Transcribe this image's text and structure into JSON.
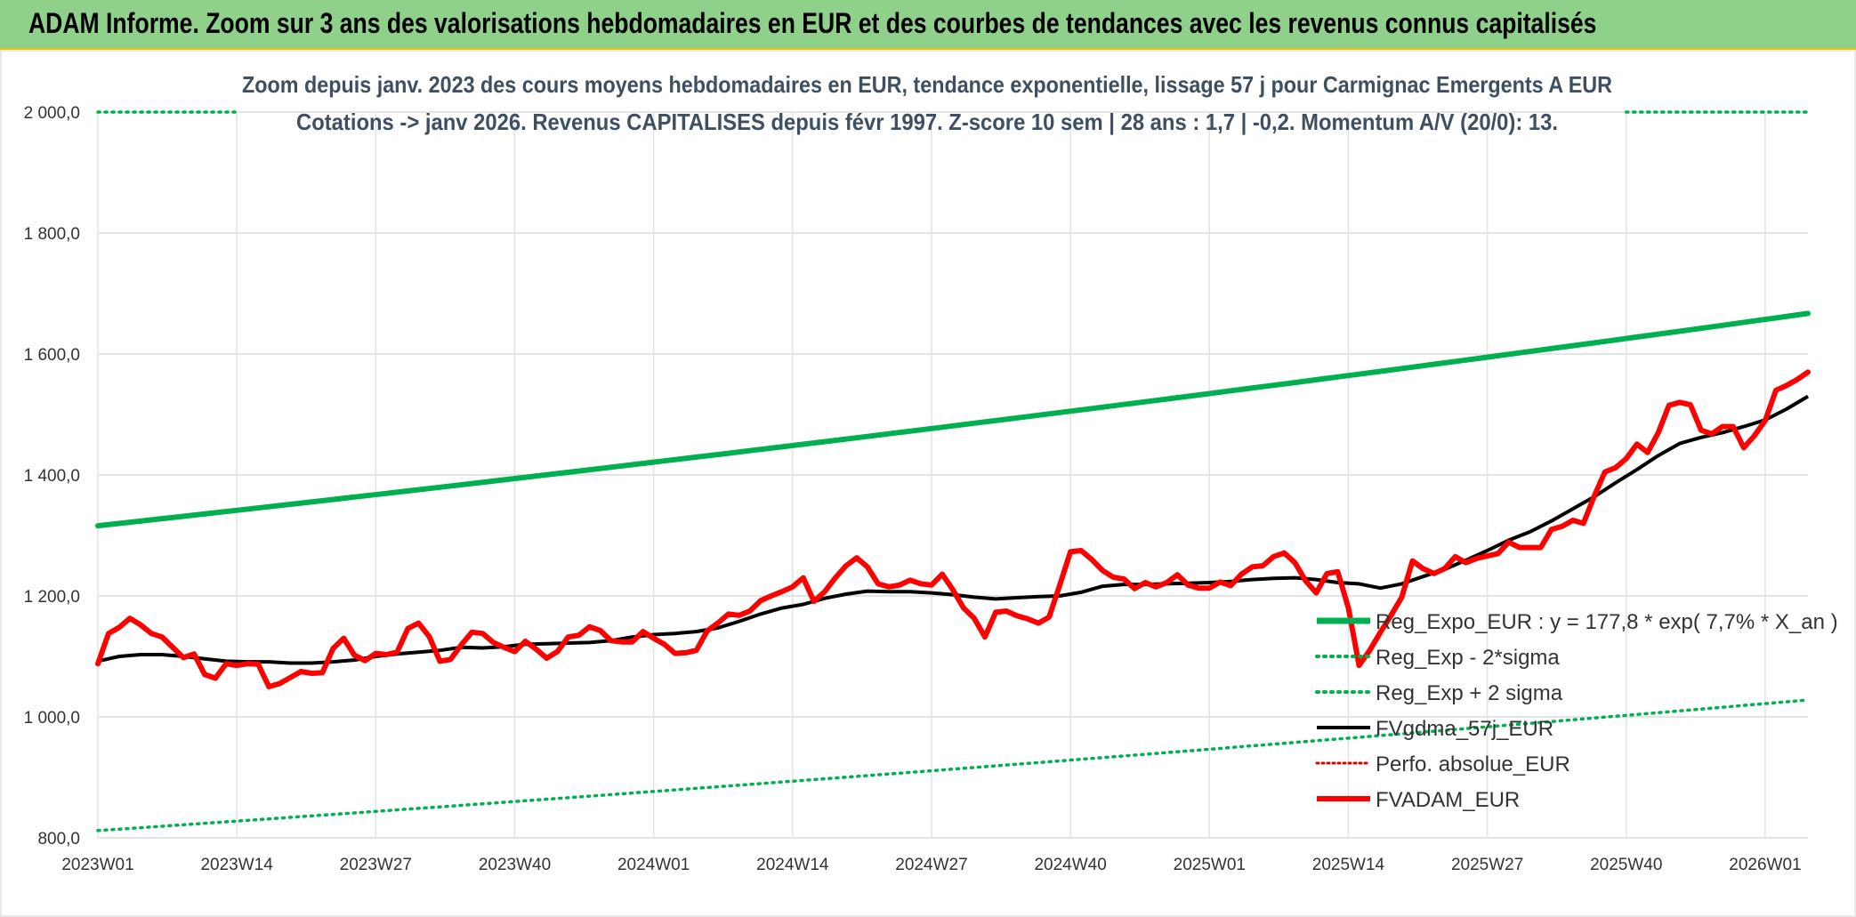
{
  "header": {
    "title": "ADAM Informe. Zoom sur 3 ans des valorisations hebdomadaires en EUR et des courbes de tendances avec les revenus connus capitalisés"
  },
  "chart_data": {
    "type": "line",
    "title_line1": "Zoom depuis janv. 2023 des cours moyens hebdomadaires en EUR, tendance exponentielle, lissage 57 j pour Carmignac Emergents A EUR",
    "title_line2": "Cotations -> janv 2026. Revenus CAPITALISES depuis févr 1997. Z-score 10 sem | 28 ans : 1,7 | -0,2. Momentum A/V (20/0): 13.",
    "ylim": [
      800,
      2000
    ],
    "yticks": [
      800,
      1000,
      1200,
      1400,
      1600,
      1800,
      2000
    ],
    "ytick_labels": [
      "800,0",
      "1 000,0",
      "1 200,0",
      "1 400,0",
      "1 600,0",
      "1 800,0",
      "2 000,0"
    ],
    "xlim": [
      0,
      160
    ],
    "xticks": [
      0,
      13,
      26,
      39,
      52,
      65,
      78,
      91,
      104,
      117,
      130,
      143,
      156
    ],
    "xtick_labels": [
      "2023W01",
      "2023W14",
      "2023W27",
      "2023W40",
      "2024W01",
      "2024W14",
      "2024W27",
      "2024W40",
      "2025W01",
      "2025W14",
      "2025W27",
      "2025W40",
      "2026W01"
    ],
    "grid": true,
    "legend_position": "bottom-right",
    "colors": {
      "reg": "#00b050",
      "sigma": "#00b050",
      "gdma": "#000000",
      "perfo": "#e00000",
      "adam": "#ff0000"
    },
    "series": [
      {
        "name": "Reg_Expo_EUR : y = 177,8 * exp( 7,7% *  X_an )",
        "key": "reg",
        "style": "thick",
        "endpoints": [
          [
            0,
            1316
          ],
          [
            160,
            1667
          ]
        ]
      },
      {
        "name": "Reg_Exp - 2*sigma",
        "key": "sigma_low",
        "style": "dotted",
        "endpoints": [
          [
            0,
            812
          ],
          [
            160,
            1028
          ]
        ]
      },
      {
        "name": "Reg_Exp + 2 sigma",
        "key": "sigma_high",
        "style": "dotted",
        "segments": [
          [
            [
              0,
              2000
            ],
            [
              13,
              2000
            ]
          ],
          [
            [
              143,
              2000
            ],
            [
              160,
              2000
            ]
          ]
        ]
      },
      {
        "name": "FVgdma_57j_EUR",
        "key": "gdma",
        "style": "solid",
        "points": [
          [
            0,
            1092
          ],
          [
            2,
            1100
          ],
          [
            4,
            1103
          ],
          [
            6,
            1103
          ],
          [
            8,
            1100
          ],
          [
            10,
            1096
          ],
          [
            12,
            1092
          ],
          [
            14,
            1091
          ],
          [
            16,
            1091
          ],
          [
            18,
            1089
          ],
          [
            20,
            1089
          ],
          [
            22,
            1091
          ],
          [
            24,
            1094
          ],
          [
            26,
            1100
          ],
          [
            28,
            1104
          ],
          [
            30,
            1107
          ],
          [
            32,
            1110
          ],
          [
            34,
            1115
          ],
          [
            36,
            1114
          ],
          [
            38,
            1116
          ],
          [
            40,
            1120
          ],
          [
            42,
            1121
          ],
          [
            44,
            1122
          ],
          [
            46,
            1123
          ],
          [
            48,
            1126
          ],
          [
            50,
            1132
          ],
          [
            52,
            1136
          ],
          [
            54,
            1138
          ],
          [
            56,
            1141
          ],
          [
            58,
            1147
          ],
          [
            60,
            1158
          ],
          [
            62,
            1170
          ],
          [
            64,
            1180
          ],
          [
            66,
            1186
          ],
          [
            68,
            1196
          ],
          [
            70,
            1203
          ],
          [
            72,
            1208
          ],
          [
            74,
            1207
          ],
          [
            76,
            1207
          ],
          [
            78,
            1205
          ],
          [
            80,
            1202
          ],
          [
            82,
            1198
          ],
          [
            84,
            1195
          ],
          [
            86,
            1197
          ],
          [
            88,
            1199
          ],
          [
            90,
            1200
          ],
          [
            92,
            1206
          ],
          [
            94,
            1216
          ],
          [
            96,
            1219
          ],
          [
            98,
            1219
          ],
          [
            100,
            1220
          ],
          [
            102,
            1221
          ],
          [
            104,
            1222
          ],
          [
            106,
            1224
          ],
          [
            108,
            1227
          ],
          [
            110,
            1229
          ],
          [
            112,
            1230
          ],
          [
            114,
            1227
          ],
          [
            116,
            1222
          ],
          [
            118,
            1220
          ],
          [
            120,
            1213
          ],
          [
            122,
            1220
          ],
          [
            124,
            1232
          ],
          [
            126,
            1244
          ],
          [
            128,
            1259
          ],
          [
            130,
            1275
          ],
          [
            132,
            1292
          ],
          [
            134,
            1306
          ],
          [
            136,
            1324
          ],
          [
            138,
            1344
          ],
          [
            140,
            1364
          ],
          [
            142,
            1387
          ],
          [
            144,
            1409
          ],
          [
            146,
            1432
          ],
          [
            148,
            1452
          ],
          [
            150,
            1462
          ],
          [
            152,
            1470
          ],
          [
            154,
            1480
          ],
          [
            156,
            1491
          ],
          [
            158,
            1509
          ],
          [
            160,
            1530
          ]
        ]
      },
      {
        "name": "Perfo. absolue_EUR",
        "key": "perfo",
        "style": "dotted",
        "points": []
      },
      {
        "name": "FVADAM_EUR",
        "key": "adam",
        "style": "thick",
        "points": [
          [
            0,
            1088
          ],
          [
            1,
            1138
          ],
          [
            2,
            1148
          ],
          [
            3,
            1163
          ],
          [
            4,
            1152
          ],
          [
            5,
            1138
          ],
          [
            6,
            1132
          ],
          [
            7,
            1115
          ],
          [
            8,
            1098
          ],
          [
            9,
            1104
          ],
          [
            10,
            1070
          ],
          [
            11,
            1064
          ],
          [
            12,
            1088
          ],
          [
            13,
            1085
          ],
          [
            14,
            1088
          ],
          [
            15,
            1087
          ],
          [
            16,
            1050
          ],
          [
            17,
            1055
          ],
          [
            18,
            1065
          ],
          [
            19,
            1075
          ],
          [
            20,
            1072
          ],
          [
            21,
            1073
          ],
          [
            22,
            1113
          ],
          [
            23,
            1130
          ],
          [
            24,
            1102
          ],
          [
            25,
            1093
          ],
          [
            26,
            1105
          ],
          [
            27,
            1103
          ],
          [
            28,
            1107
          ],
          [
            29,
            1146
          ],
          [
            30,
            1155
          ],
          [
            31,
            1133
          ],
          [
            32,
            1092
          ],
          [
            33,
            1095
          ],
          [
            34,
            1119
          ],
          [
            35,
            1140
          ],
          [
            36,
            1138
          ],
          [
            37,
            1123
          ],
          [
            38,
            1115
          ],
          [
            39,
            1108
          ],
          [
            40,
            1125
          ],
          [
            41,
            1112
          ],
          [
            42,
            1097
          ],
          [
            43,
            1108
          ],
          [
            44,
            1132
          ],
          [
            45,
            1135
          ],
          [
            46,
            1149
          ],
          [
            47,
            1143
          ],
          [
            48,
            1126
          ],
          [
            49,
            1124
          ],
          [
            50,
            1124
          ],
          [
            51,
            1141
          ],
          [
            52,
            1130
          ],
          [
            53,
            1120
          ],
          [
            54,
            1105
          ],
          [
            55,
            1106
          ],
          [
            56,
            1110
          ],
          [
            57,
            1142
          ],
          [
            58,
            1155
          ],
          [
            59,
            1170
          ],
          [
            60,
            1168
          ],
          [
            61,
            1175
          ],
          [
            62,
            1192
          ],
          [
            63,
            1200
          ],
          [
            64,
            1207
          ],
          [
            65,
            1215
          ],
          [
            66,
            1230
          ],
          [
            67,
            1191
          ],
          [
            68,
            1207
          ],
          [
            69,
            1230
          ],
          [
            70,
            1250
          ],
          [
            71,
            1263
          ],
          [
            72,
            1248
          ],
          [
            73,
            1220
          ],
          [
            74,
            1215
          ],
          [
            75,
            1218
          ],
          [
            76,
            1226
          ],
          [
            77,
            1220
          ],
          [
            78,
            1218
          ],
          [
            79,
            1236
          ],
          [
            80,
            1210
          ],
          [
            81,
            1180
          ],
          [
            82,
            1163
          ],
          [
            83,
            1132
          ],
          [
            84,
            1173
          ],
          [
            85,
            1175
          ],
          [
            86,
            1167
          ],
          [
            87,
            1162
          ],
          [
            88,
            1155
          ],
          [
            89,
            1165
          ],
          [
            90,
            1218
          ],
          [
            91,
            1273
          ],
          [
            92,
            1275
          ],
          [
            93,
            1260
          ],
          [
            94,
            1242
          ],
          [
            95,
            1231
          ],
          [
            96,
            1228
          ],
          [
            97,
            1212
          ],
          [
            98,
            1222
          ],
          [
            99,
            1215
          ],
          [
            100,
            1222
          ],
          [
            101,
            1235
          ],
          [
            102,
            1218
          ],
          [
            103,
            1213
          ],
          [
            104,
            1213
          ],
          [
            105,
            1223
          ],
          [
            106,
            1217
          ],
          [
            107,
            1236
          ],
          [
            108,
            1248
          ],
          [
            109,
            1250
          ],
          [
            110,
            1265
          ],
          [
            111,
            1271
          ],
          [
            112,
            1255
          ],
          [
            113,
            1225
          ],
          [
            114,
            1205
          ],
          [
            115,
            1237
          ],
          [
            116,
            1240
          ],
          [
            117,
            1180
          ],
          [
            118,
            1085
          ],
          [
            119,
            1110
          ],
          [
            120,
            1140
          ],
          [
            121,
            1168
          ],
          [
            122,
            1198
          ],
          [
            123,
            1258
          ],
          [
            124,
            1245
          ],
          [
            125,
            1237
          ],
          [
            126,
            1245
          ],
          [
            127,
            1265
          ],
          [
            128,
            1255
          ],
          [
            129,
            1262
          ],
          [
            130,
            1266
          ],
          [
            131,
            1270
          ],
          [
            132,
            1289
          ],
          [
            133,
            1280
          ],
          [
            134,
            1280
          ],
          [
            135,
            1280
          ],
          [
            136,
            1310
          ],
          [
            137,
            1315
          ],
          [
            138,
            1325
          ],
          [
            139,
            1320
          ],
          [
            140,
            1365
          ],
          [
            141,
            1405
          ],
          [
            142,
            1412
          ],
          [
            143,
            1427
          ],
          [
            144,
            1451
          ],
          [
            145,
            1437
          ],
          [
            146,
            1470
          ],
          [
            147,
            1515
          ],
          [
            148,
            1520
          ],
          [
            149,
            1516
          ],
          [
            150,
            1474
          ],
          [
            151,
            1468
          ],
          [
            152,
            1480
          ],
          [
            153,
            1480
          ],
          [
            154,
            1445
          ],
          [
            155,
            1465
          ],
          [
            156,
            1490
          ],
          [
            157,
            1540
          ],
          [
            158,
            1548
          ],
          [
            159,
            1558
          ],
          [
            160,
            1570
          ]
        ]
      }
    ]
  }
}
